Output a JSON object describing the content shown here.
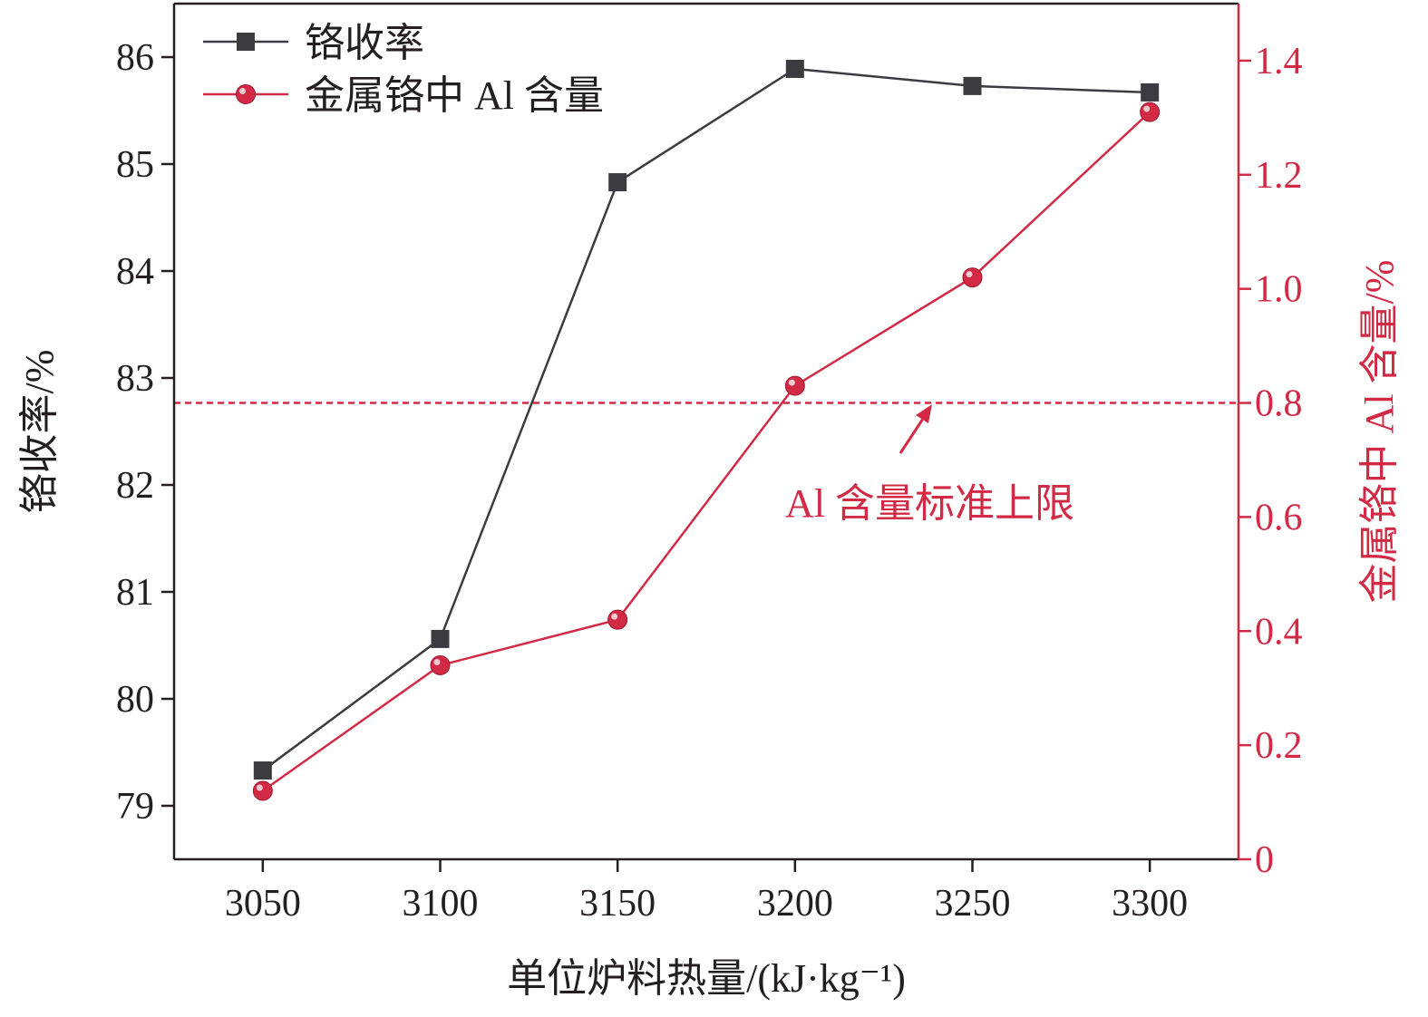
{
  "chart_data": {
    "type": "line",
    "x": [
      3050,
      3100,
      3150,
      3200,
      3250,
      3300
    ],
    "xlabel": "单位炉料热量/(kJ·kg⁻¹)",
    "xlim": [
      3025,
      3325
    ],
    "y1label": "铬收率/%",
    "y1lim": [
      78.5,
      86.5
    ],
    "y1ticks": [
      79,
      80,
      81,
      82,
      83,
      84,
      85,
      86
    ],
    "y2label": "金属铬中 Al 含量/%",
    "y2lim": [
      0,
      1.5
    ],
    "y2ticks": [
      "0",
      "0.2",
      "0.4",
      "0.6",
      "0.8",
      "1.0",
      "1.2",
      "1.4"
    ],
    "series": [
      {
        "name": "铬收率",
        "axis": "left",
        "marker": "square",
        "color": "#3b3b40",
        "values": [
          79.33,
          80.56,
          84.83,
          85.89,
          85.73,
          85.67
        ]
      },
      {
        "name": "金属铬中 Al 含量",
        "axis": "right",
        "marker": "circle",
        "color": "#d22a45",
        "values": [
          0.12,
          0.34,
          0.42,
          0.83,
          1.02,
          1.31
        ]
      }
    ],
    "reference_line": {
      "axis": "right",
      "value": 0.8,
      "style": "dashed",
      "color": "#d22a45"
    },
    "annotation": {
      "text": "Al 含量标准上限",
      "color": "#d22a45"
    },
    "legend": "top-left",
    "grid": false
  }
}
